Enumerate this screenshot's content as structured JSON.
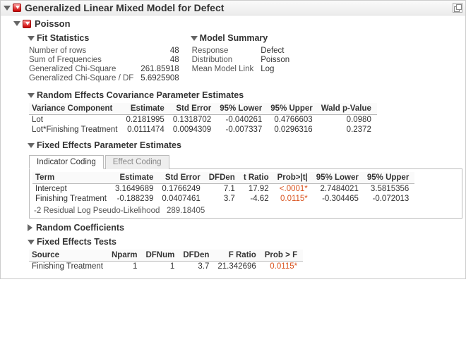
{
  "colors": {
    "sig": "#d9531e",
    "border": "#bbbbbb",
    "headerbg": "#f0f0f0"
  },
  "main": {
    "title": "Generalized Linear Mixed Model for Defect"
  },
  "poisson": {
    "title": "Poisson"
  },
  "fitstats": {
    "title": "Fit Statistics",
    "rows": [
      {
        "k": "Number of rows",
        "v": "48"
      },
      {
        "k": "Sum of Frequencies",
        "v": "48"
      },
      {
        "k": "Generalized Chi-Square",
        "v": "261.85918"
      },
      {
        "k": "Generalized Chi-Square / DF",
        "v": "5.6925908"
      }
    ]
  },
  "modelsummary": {
    "title": "Model Summary",
    "rows": [
      {
        "k": "Response",
        "v": "Defect"
      },
      {
        "k": "Distribution",
        "v": "Poisson"
      },
      {
        "k": "Mean Model Link",
        "v": "Log"
      }
    ]
  },
  "randcov": {
    "title": "Random Effects Covariance Parameter Estimates",
    "headers": [
      "Variance Component",
      "Estimate",
      "Std Error",
      "95% Lower",
      "95% Upper",
      "Wald p-Value"
    ],
    "rows": [
      [
        "Lot",
        "0.2181995",
        "0.1318702",
        "-0.040261",
        "0.4766603",
        "0.0980"
      ],
      [
        "Lot*Finishing Treatment",
        "0.0111474",
        "0.0094309",
        "-0.007337",
        "0.0296316",
        "0.2372"
      ]
    ]
  },
  "fixedparam": {
    "title": "Fixed Effects Parameter Estimates",
    "tabs": [
      "Indicator Coding",
      "Effect Coding"
    ],
    "active_tab": 0,
    "headers": [
      "Term",
      "Estimate",
      "Std Error",
      "DFDen",
      "t Ratio",
      "Prob>|t|",
      "95% Lower",
      "95% Upper"
    ],
    "rows": [
      {
        "cells": [
          "Intercept",
          "3.1649689",
          "0.1766249",
          "7.1",
          "17.92",
          "<.0001*",
          "2.7484021",
          "3.5815356"
        ],
        "sig_col": 5
      },
      {
        "cells": [
          "Finishing Treatment",
          "-0.188239",
          "0.0407461",
          "3.7",
          "-4.62",
          "0.0115*",
          "-0.304465",
          "-0.072013"
        ],
        "sig_col": 5
      }
    ],
    "footer_label": "-2 Residual Log Pseudo-Likelihood",
    "footer_value": "289.18405"
  },
  "randcoef": {
    "title": "Random Coefficients"
  },
  "fixedtests": {
    "title": "Fixed Effects Tests",
    "headers": [
      "Source",
      "Nparm",
      "DFNum",
      "DFDen",
      "F Ratio",
      "Prob > F"
    ],
    "rows": [
      {
        "cells": [
          "Finishing Treatment",
          "1",
          "1",
          "3.7",
          "21.342696",
          "0.0115*"
        ],
        "sig_col": 5
      }
    ]
  }
}
